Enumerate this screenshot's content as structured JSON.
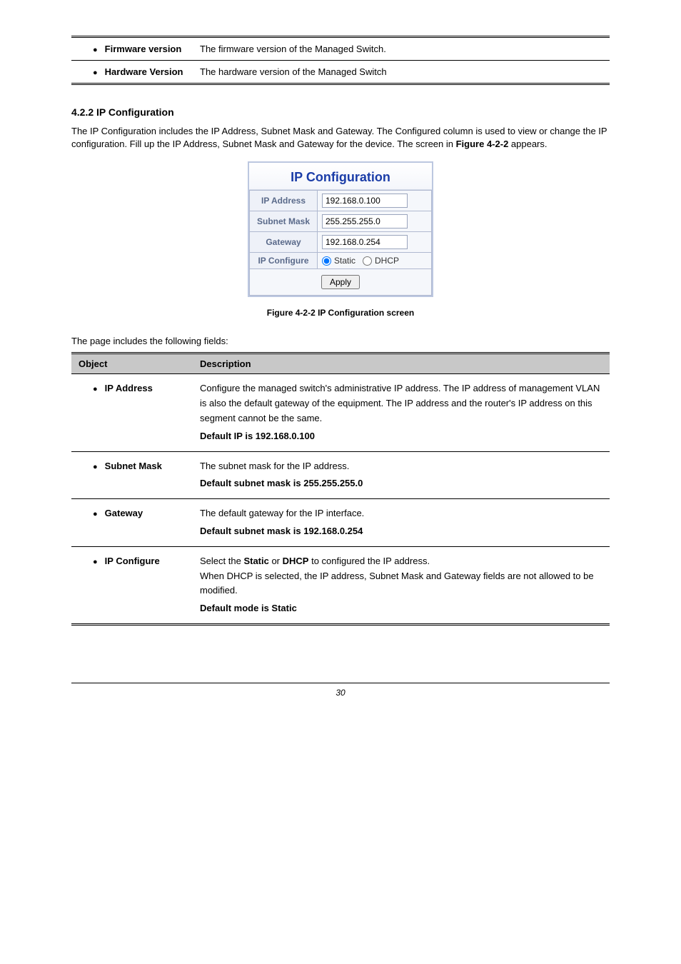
{
  "topTable": {
    "row1": {
      "label": "Firmware version",
      "desc": "The firmware version of the Managed Switch."
    },
    "row2": {
      "label": "Hardware Version",
      "desc": "The hardware version of the Managed Switch"
    }
  },
  "section": {
    "heading": "4.2.2 IP Configuration",
    "intro": "The IP Configuration includes the IP Address, Subnet Mask and Gateway. The Configured column is used to view or change the IP configuration. Fill up the IP Address, Subnet Mask and Gateway for the device. The screen in ",
    "introFigureRef": "Figure 4-2-2",
    "introTail": " appears."
  },
  "ipWidget": {
    "title": "IP Configuration",
    "rows": {
      "ipAddress": {
        "label": "IP Address",
        "value": "192.168.0.100"
      },
      "subnetMask": {
        "label": "Subnet Mask",
        "value": "255.255.255.0"
      },
      "gateway": {
        "label": "Gateway",
        "value": "192.168.0.254"
      },
      "ipConfigure": {
        "label": "IP Configure",
        "staticLabel": "Static",
        "dhcpLabel": "DHCP"
      }
    },
    "applyLabel": "Apply"
  },
  "figureCaption": "Figure 4-2-2 IP Configuration screen",
  "descIntro": "The page includes the following fields:",
  "descTable": {
    "header": {
      "object": "Object",
      "description": "Description"
    },
    "rows": [
      {
        "object": "IP Address",
        "desc": "Configure the managed switch's administrative IP address. The IP address of management VLAN is also the default gateway of the equipment. The IP address and the router's IP address on this segment cannot be the same.",
        "default": "Default IP is 192.168.0.100"
      },
      {
        "object": "Subnet Mask",
        "desc": "The subnet mask for the IP address.",
        "default": "Default subnet mask is 255.255.255.0"
      },
      {
        "object": "Gateway",
        "desc": "The default gateway for the IP interface.",
        "default": "Default subnet mask is 192.168.0.254"
      },
      {
        "object": "IP Configure",
        "desc1": "Select the ",
        "descBold1": "Static",
        "desc2": " or ",
        "descBold2": "DHCP",
        "desc3": " to configured the IP address.",
        "desc4": "When DHCP is selected, the IP address, Subnet Mask and Gateway fields are not allowed to be modified.",
        "default": "Default mode is Static"
      }
    ]
  },
  "pageNumber": "30"
}
